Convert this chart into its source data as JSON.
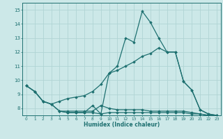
{
  "xlabel": "Humidex (Indice chaleur)",
  "background_color": "#cce8e8",
  "grid_color": "#b0d4d4",
  "line_color": "#1e7070",
  "x": [
    0,
    1,
    2,
    3,
    4,
    5,
    6,
    7,
    8,
    9,
    10,
    11,
    12,
    13,
    14,
    15,
    16,
    17,
    18,
    19,
    20,
    21,
    22,
    23
  ],
  "line_spiky": [
    9.6,
    9.2,
    8.5,
    8.3,
    7.8,
    7.7,
    7.7,
    7.7,
    8.2,
    7.6,
    10.5,
    11.0,
    13.0,
    12.7,
    14.9,
    14.1,
    13.0,
    12.0,
    12.0,
    9.9,
    9.3,
    7.9,
    7.6,
    7.5
  ],
  "line_avg": [
    9.6,
    9.2,
    8.5,
    8.3,
    8.5,
    8.7,
    8.8,
    8.9,
    9.2,
    9.7,
    10.5,
    10.7,
    11.0,
    11.3,
    11.7,
    11.9,
    12.3,
    12.0,
    12.0,
    9.9,
    9.3,
    7.9,
    7.6,
    7.5
  ],
  "line_flat": [
    9.6,
    9.2,
    8.5,
    8.3,
    7.8,
    7.8,
    7.8,
    7.8,
    7.8,
    8.2,
    8.0,
    7.9,
    7.9,
    7.9,
    7.9,
    7.8,
    7.8,
    7.8,
    7.8,
    7.8,
    7.7,
    7.6,
    7.5,
    7.5
  ],
  "line_low": [
    null,
    null,
    null,
    null,
    7.8,
    7.7,
    7.7,
    7.7,
    7.7,
    7.6,
    7.7,
    7.7,
    7.7,
    7.7,
    7.7,
    7.7,
    7.7,
    7.7,
    7.7,
    7.7,
    7.6,
    7.6,
    7.5,
    7.5
  ],
  "ylim": [
    7.5,
    15.5
  ],
  "xlim": [
    -0.5,
    23.5
  ],
  "yticks": [
    8,
    9,
    10,
    11,
    12,
    13,
    14,
    15
  ],
  "xticks": [
    0,
    1,
    2,
    3,
    4,
    5,
    6,
    7,
    8,
    9,
    10,
    11,
    12,
    13,
    14,
    15,
    16,
    17,
    18,
    19,
    20,
    21,
    22,
    23
  ]
}
